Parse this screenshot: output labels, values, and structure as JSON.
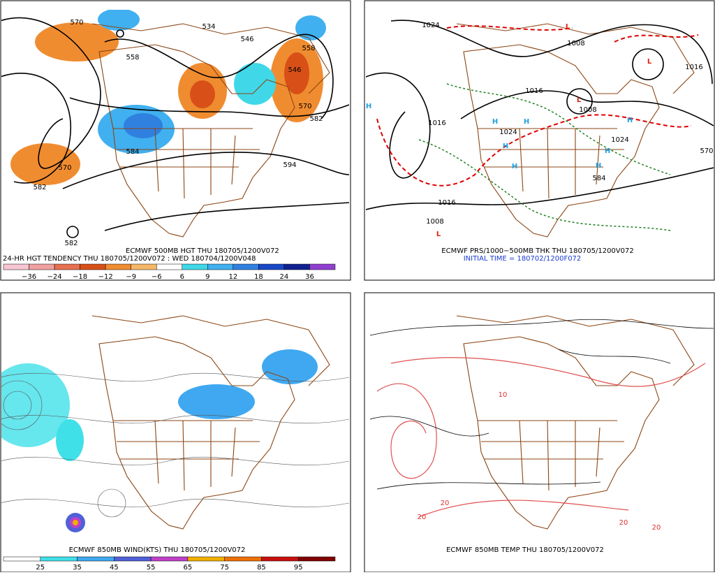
{
  "panels": [
    {
      "captions": [
        "ECMWF 500MB HGT THU 180705/1200V072",
        "24-HR HGT TENDENCY THU 180705/1200V072 : WED 180704/1200V048"
      ],
      "colorbar": {
        "colors": [
          "#f7c6d2",
          "#f0a0a0",
          "#e87050",
          "#d85018",
          "#f08c30",
          "#f5b868",
          "#ffffff",
          "#40d8e8",
          "#40b0f0",
          "#3080e0",
          "#1848c8",
          "#102090",
          "#9040d0"
        ],
        "labels": [
          "−36",
          "−24",
          "−18",
          "−12",
          "−9",
          "−6",
          "6",
          "9",
          "12",
          "18",
          "24",
          "36"
        ]
      },
      "map_labels": [
        "570",
        "558",
        "534",
        "546",
        "558",
        "546",
        "570",
        "582",
        "584",
        "570",
        "582",
        "594",
        "582"
      ]
    },
    {
      "captions": [
        "ECMWF PRS/1000−500MB THK THU 180705/1200V072",
        "INITIAL TIME = 180702/1200F072"
      ],
      "map_labels": [
        "1024",
        "1016",
        "1016",
        "1008",
        "1016",
        "1008",
        "1008",
        "1024",
        "1016",
        "1024",
        "584",
        "570",
        "H",
        "H",
        "H",
        "H",
        "H",
        "H",
        "H",
        "H",
        "L",
        "L",
        "L",
        "L"
      ]
    },
    {
      "captions": [
        "ECMWF 850MB WIND(KTS) THU 180705/1200V072"
      ],
      "colorbar": {
        "colors": [
          "#ffffff",
          "#40e0e8",
          "#40a8f0",
          "#5060d8",
          "#c040c8",
          "#f0b000",
          "#f07000",
          "#c81010",
          "#800000"
        ],
        "labels": [
          "25",
          "35",
          "45",
          "55",
          "65",
          "75",
          "85",
          "95"
        ]
      }
    },
    {
      "captions": [
        "ECMWF 850MB TEMP THU 180705/1200V072"
      ],
      "map_labels": [
        "10",
        "20",
        "20",
        "20",
        "20"
      ]
    }
  ]
}
